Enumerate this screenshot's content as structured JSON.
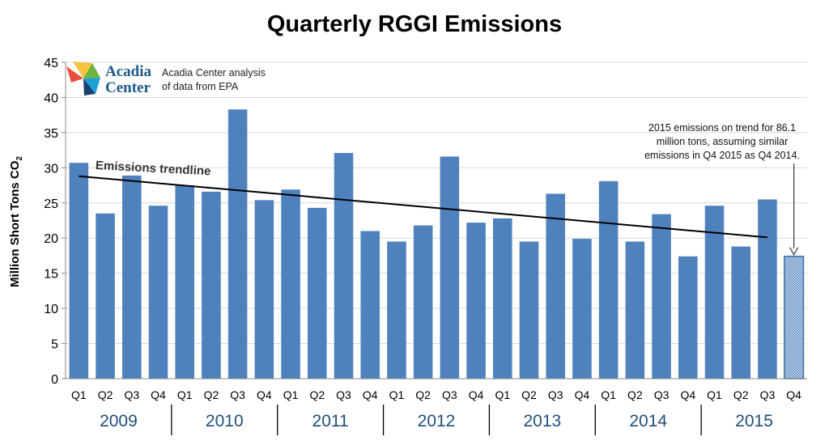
{
  "chart_data": {
    "type": "bar",
    "title": "Quarterly RGGI Emissions",
    "ylabel": "Million  Short Tons CO",
    "ylabel_sub": "2",
    "ylim": [
      0,
      45
    ],
    "yticks": [
      0,
      5,
      10,
      15,
      20,
      25,
      30,
      35,
      40,
      45
    ],
    "grid": true,
    "years": [
      "2009",
      "2010",
      "2011",
      "2012",
      "2013",
      "2014",
      "2015"
    ],
    "categories": [
      "Q1",
      "Q2",
      "Q3",
      "Q4",
      "Q1",
      "Q2",
      "Q3",
      "Q4",
      "Q1",
      "Q2",
      "Q3",
      "Q4",
      "Q1",
      "Q2",
      "Q3",
      "Q4",
      "Q1",
      "Q2",
      "Q3",
      "Q4",
      "Q1",
      "Q2",
      "Q3",
      "Q4",
      "Q1",
      "Q2",
      "Q3",
      "Q4"
    ],
    "values": [
      30.7,
      23.5,
      28.9,
      24.6,
      27.5,
      26.6,
      38.3,
      25.4,
      26.9,
      24.3,
      32.1,
      21.0,
      19.5,
      21.8,
      31.6,
      22.2,
      22.8,
      19.5,
      26.3,
      19.9,
      28.1,
      19.5,
      23.4,
      17.4,
      24.6,
      18.8,
      25.5,
      17.4
    ],
    "projected_last": true,
    "trendline": {
      "label": "Emissions trendline",
      "start": 28.8,
      "end": 20.1
    },
    "annotation": [
      "2015 emissions on trend for 86.1",
      "million  tons, assuming similar",
      "emissions in Q4 2015 as Q4 2014."
    ],
    "colors": {
      "bar": "#4f81bd",
      "bar_edge": "#3a6ea5",
      "trend": "#000000",
      "grid": "#d9d9d9",
      "year_label": "#1f4e79"
    }
  },
  "logo": {
    "name_line1": "Acadia",
    "name_line2": "Center",
    "caption_line1": "Acadia Center analysis",
    "caption_line2": "of data from EPA",
    "icon": "acadia-pinwheel-icon"
  }
}
